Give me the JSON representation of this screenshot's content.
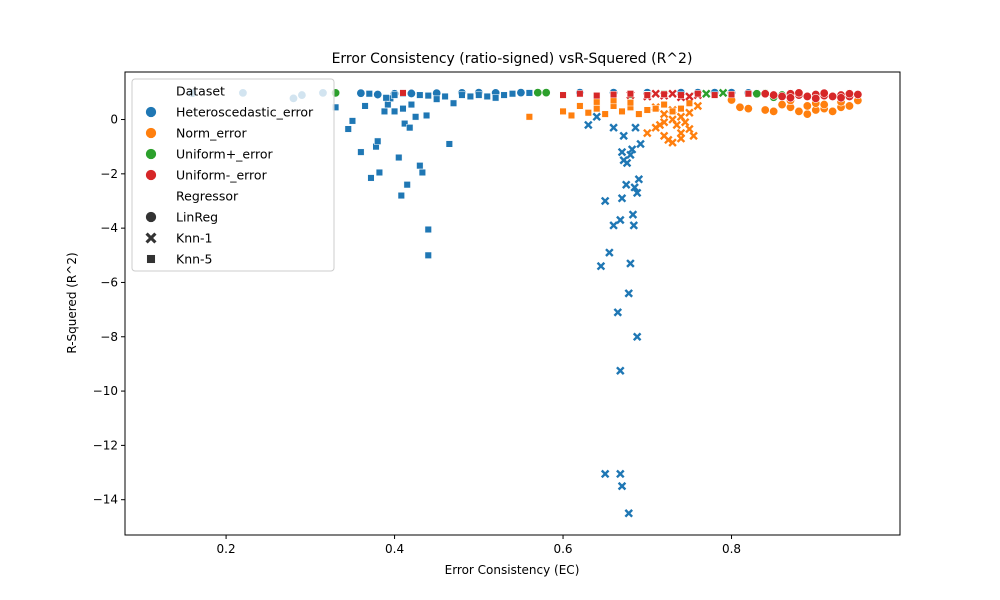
{
  "chart_data": {
    "type": "scatter",
    "title": "Error Consistency (ratio-signed) vsR-Squered (R^2)",
    "xlabel": "Error Consistency (EC)",
    "ylabel": "R-Squered (R^2)",
    "xlim": [
      0.08,
      1.0
    ],
    "ylim": [
      -15.3,
      1.75
    ],
    "xticks": [
      0.2,
      0.4,
      0.6,
      0.8
    ],
    "xtick_labels": [
      "0.2",
      "0.4",
      "0.6",
      "0.8"
    ],
    "yticks": [
      0,
      -2,
      -4,
      -6,
      -8,
      -10,
      -12,
      -14
    ],
    "ytick_labels": [
      "0",
      "−2",
      "−4",
      "−6",
      "−8",
      "−10",
      "−12",
      "−14"
    ],
    "grid": false,
    "legend": {
      "placement": "upper-left",
      "hue_title": "Dataset",
      "style_title": "Regressor",
      "hue_entries": [
        {
          "label": "Heteroscedastic_error",
          "color": "#1f77b4"
        },
        {
          "label": "Norm_error",
          "color": "#ff7f0e"
        },
        {
          "label": "Uniform+_error",
          "color": "#2ca02c"
        },
        {
          "label": "Uniform-_error",
          "color": "#d62728"
        }
      ],
      "style_entries": [
        {
          "label": "LinReg",
          "marker": "circle"
        },
        {
          "label": "Knn-1",
          "marker": "x"
        },
        {
          "label": "Knn-5",
          "marker": "square"
        }
      ]
    },
    "series": [
      {
        "name": "Heteroscedastic_error",
        "color": "#1f77b4",
        "LinReg": [
          [
            0.16,
            0.97
          ],
          [
            0.22,
            0.98
          ],
          [
            0.28,
            0.78
          ],
          [
            0.29,
            0.9
          ],
          [
            0.315,
            0.98
          ],
          [
            0.36,
            0.97
          ],
          [
            0.38,
            0.92
          ],
          [
            0.4,
            0.95
          ],
          [
            0.42,
            0.96
          ],
          [
            0.45,
            0.97
          ],
          [
            0.48,
            0.98
          ],
          [
            0.5,
            0.99
          ],
          [
            0.52,
            0.98
          ],
          [
            0.55,
            0.99
          ],
          [
            0.58,
            0.99
          ],
          [
            0.62,
            0.99
          ],
          [
            0.66,
            0.99
          ],
          [
            0.7,
            0.99
          ],
          [
            0.74,
            0.99
          ],
          [
            0.76,
            0.99
          ],
          [
            0.78,
            0.99
          ],
          [
            0.8,
            0.99
          ],
          [
            0.82,
            0.98
          ]
        ],
        "Knn-1": [
          [
            0.63,
            -0.2
          ],
          [
            0.64,
            0.1
          ],
          [
            0.65,
            -3.0
          ],
          [
            0.655,
            -4.9
          ],
          [
            0.645,
            -5.4
          ],
          [
            0.66,
            -0.3
          ],
          [
            0.665,
            -7.1
          ],
          [
            0.67,
            -1.2
          ],
          [
            0.672,
            -1.5
          ],
          [
            0.675,
            -2.4
          ],
          [
            0.668,
            -3.7
          ],
          [
            0.67,
            -2.9
          ],
          [
            0.672,
            -0.6
          ],
          [
            0.678,
            -6.4
          ],
          [
            0.68,
            -5.3
          ],
          [
            0.682,
            -1.1
          ],
          [
            0.685,
            -2.5
          ],
          [
            0.688,
            -2.7
          ],
          [
            0.69,
            -2.2
          ],
          [
            0.692,
            -0.9
          ],
          [
            0.683,
            -3.5
          ],
          [
            0.684,
            -3.9
          ],
          [
            0.686,
            -0.3
          ],
          [
            0.668,
            -9.25
          ],
          [
            0.65,
            -13.05
          ],
          [
            0.668,
            -13.05
          ],
          [
            0.67,
            -13.5
          ],
          [
            0.678,
            -14.5
          ],
          [
            0.688,
            -8.0
          ],
          [
            0.66,
            -3.9
          ],
          [
            0.676,
            -1.6
          ],
          [
            0.68,
            -1.3
          ]
        ],
        "Knn-5": [
          [
            0.33,
            0.45
          ],
          [
            0.345,
            -0.35
          ],
          [
            0.35,
            -0.05
          ],
          [
            0.36,
            -1.2
          ],
          [
            0.365,
            0.5
          ],
          [
            0.372,
            -2.15
          ],
          [
            0.378,
            -1.0
          ],
          [
            0.38,
            -0.8
          ],
          [
            0.382,
            -1.95
          ],
          [
            0.388,
            0.3
          ],
          [
            0.392,
            0.55
          ],
          [
            0.395,
            0.78
          ],
          [
            0.4,
            0.3
          ],
          [
            0.405,
            -1.4
          ],
          [
            0.408,
            -2.8
          ],
          [
            0.41,
            0.4
          ],
          [
            0.412,
            -0.15
          ],
          [
            0.415,
            -2.4
          ],
          [
            0.418,
            -0.3
          ],
          [
            0.42,
            0.55
          ],
          [
            0.425,
            0.1
          ],
          [
            0.43,
            -1.7
          ],
          [
            0.433,
            -1.95
          ],
          [
            0.438,
            0.15
          ],
          [
            0.44,
            -4.05
          ],
          [
            0.44,
            -5.0
          ],
          [
            0.45,
            0.75
          ],
          [
            0.46,
            0.85
          ],
          [
            0.465,
            -0.9
          ],
          [
            0.47,
            0.6
          ],
          [
            0.48,
            0.9
          ],
          [
            0.49,
            0.85
          ],
          [
            0.5,
            0.9
          ],
          [
            0.51,
            0.85
          ],
          [
            0.52,
            0.8
          ],
          [
            0.53,
            0.9
          ],
          [
            0.54,
            0.95
          ],
          [
            0.56,
            0.98
          ],
          [
            0.39,
            0.8
          ],
          [
            0.4,
            0.9
          ],
          [
            0.41,
            0.95
          ],
          [
            0.43,
            0.9
          ],
          [
            0.44,
            0.88
          ],
          [
            0.37,
            0.95
          ]
        ]
      },
      {
        "name": "Norm_error",
        "color": "#ff7f0e",
        "LinReg": [
          [
            0.8,
            0.72
          ],
          [
            0.81,
            0.45
          ],
          [
            0.82,
            0.4
          ],
          [
            0.84,
            0.35
          ],
          [
            0.85,
            0.3
          ],
          [
            0.86,
            0.55
          ],
          [
            0.87,
            0.45
          ],
          [
            0.88,
            0.3
          ],
          [
            0.89,
            0.2
          ],
          [
            0.9,
            0.35
          ],
          [
            0.91,
            0.4
          ],
          [
            0.92,
            0.3
          ],
          [
            0.93,
            0.45
          ],
          [
            0.94,
            0.5
          ],
          [
            0.87,
            0.7
          ],
          [
            0.9,
            0.6
          ],
          [
            0.93,
            0.65
          ],
          [
            0.95,
            0.7
          ],
          [
            0.89,
            0.5
          ],
          [
            0.91,
            0.55
          ]
        ],
        "Knn-1": [
          [
            0.7,
            -0.5
          ],
          [
            0.71,
            -0.3
          ],
          [
            0.72,
            -0.6
          ],
          [
            0.725,
            -0.75
          ],
          [
            0.73,
            -0.85
          ],
          [
            0.735,
            -0.2
          ],
          [
            0.74,
            -0.5
          ],
          [
            0.745,
            -0.1
          ],
          [
            0.75,
            -0.35
          ],
          [
            0.755,
            -0.6
          ],
          [
            0.72,
            0.2
          ],
          [
            0.73,
            0.35
          ],
          [
            0.74,
            0.1
          ],
          [
            0.75,
            0.25
          ],
          [
            0.76,
            0.5
          ],
          [
            0.71,
            0.45
          ],
          [
            0.72,
            -0.1
          ],
          [
            0.74,
            -0.7
          ],
          [
            0.73,
            0.0
          ],
          [
            0.715,
            -0.2
          ]
        ],
        "Knn-5": [
          [
            0.56,
            0.1
          ],
          [
            0.6,
            0.3
          ],
          [
            0.61,
            0.15
          ],
          [
            0.62,
            0.5
          ],
          [
            0.63,
            0.25
          ],
          [
            0.64,
            0.4
          ],
          [
            0.65,
            0.2
          ],
          [
            0.66,
            0.5
          ],
          [
            0.67,
            0.3
          ],
          [
            0.68,
            0.45
          ],
          [
            0.69,
            0.2
          ],
          [
            0.7,
            0.35
          ],
          [
            0.71,
            0.4
          ],
          [
            0.72,
            0.55
          ],
          [
            0.73,
            0.3
          ],
          [
            0.74,
            0.4
          ],
          [
            0.75,
            0.6
          ],
          [
            0.64,
            0.65
          ],
          [
            0.66,
            0.7
          ],
          [
            0.68,
            0.62
          ]
        ]
      },
      {
        "name": "Uniform+_error",
        "color": "#2ca02c",
        "LinReg": [
          [
            0.33,
            0.98
          ],
          [
            0.57,
            0.99
          ],
          [
            0.58,
            0.99
          ],
          [
            0.84,
            0.97
          ],
          [
            0.85,
            0.82
          ],
          [
            0.86,
            0.9
          ],
          [
            0.83,
            0.95
          ]
        ],
        "Knn-1": [
          [
            0.77,
            0.95
          ],
          [
            0.79,
            0.98
          ]
        ],
        "Knn-5": [
          [
            0.68,
            0.9
          ],
          [
            0.7,
            0.92
          ],
          [
            0.72,
            0.95
          ]
        ]
      },
      {
        "name": "Uniform-_error",
        "color": "#d62728",
        "LinReg": [
          [
            0.84,
            0.95
          ],
          [
            0.85,
            0.9
          ],
          [
            0.86,
            0.85
          ],
          [
            0.87,
            0.95
          ],
          [
            0.88,
            0.9
          ],
          [
            0.89,
            0.85
          ],
          [
            0.9,
            0.92
          ],
          [
            0.91,
            0.88
          ],
          [
            0.92,
            0.85
          ],
          [
            0.93,
            0.9
          ],
          [
            0.94,
            0.85
          ],
          [
            0.95,
            0.92
          ],
          [
            0.87,
            0.8
          ],
          [
            0.9,
            0.78
          ],
          [
            0.93,
            0.8
          ],
          [
            0.88,
            0.98
          ],
          [
            0.91,
            0.97
          ],
          [
            0.94,
            0.95
          ]
        ],
        "Knn-1": [
          [
            0.68,
            0.9
          ],
          [
            0.7,
            0.85
          ],
          [
            0.72,
            0.88
          ],
          [
            0.74,
            0.82
          ],
          [
            0.76,
            0.9
          ],
          [
            0.73,
            0.95
          ],
          [
            0.75,
            0.85
          ],
          [
            0.71,
            0.95
          ]
        ],
        "Knn-5": [
          [
            0.6,
            0.9
          ],
          [
            0.62,
            0.95
          ],
          [
            0.64,
            0.88
          ],
          [
            0.66,
            0.92
          ],
          [
            0.68,
            0.95
          ],
          [
            0.7,
            0.9
          ],
          [
            0.72,
            0.93
          ],
          [
            0.74,
            0.9
          ],
          [
            0.76,
            0.95
          ],
          [
            0.78,
            0.9
          ],
          [
            0.8,
            0.92
          ],
          [
            0.82,
            0.95
          ],
          [
            0.41,
            0.98
          ]
        ]
      }
    ]
  }
}
